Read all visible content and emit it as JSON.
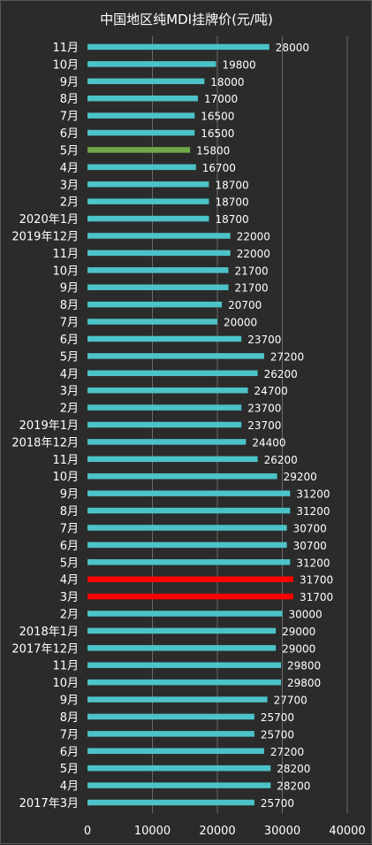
{
  "chart_data": {
    "type": "bar",
    "orientation": "horizontal",
    "title": "中国地区纯MDI挂牌价(元/吨)",
    "xlim": [
      0,
      40000
    ],
    "x_ticks": [
      "0",
      "10000",
      "20000",
      "30000",
      "40000"
    ],
    "grid": true,
    "colors": {
      "default": "#4cc3c8",
      "highlight_green": "#70a84a",
      "highlight_red": "#ff0000"
    },
    "categories": [
      "11月",
      "10月",
      "9月",
      "8月",
      "7月",
      "6月",
      "5月",
      "4月",
      "3月",
      "2月",
      "2020年1月",
      "2019年12月",
      "11月",
      "10月",
      "9月",
      "8月",
      "7月",
      "6月",
      "5月",
      "4月",
      "3月",
      "2月",
      "2019年1月",
      "2018年12月",
      "11月",
      "10月",
      "9月",
      "8月",
      "7月",
      "6月",
      "5月",
      "4月",
      "3月",
      "2月",
      "2018年1月",
      "2017年12月",
      "11月",
      "10月",
      "9月",
      "8月",
      "7月",
      "6月",
      "5月",
      "4月",
      "2017年3月"
    ],
    "values": [
      28000,
      19800,
      18000,
      17000,
      16500,
      16500,
      15800,
      16700,
      18700,
      18700,
      18700,
      22000,
      22000,
      21700,
      21700,
      20700,
      20000,
      23700,
      27200,
      26200,
      24700,
      23700,
      23700,
      24400,
      26200,
      29200,
      31200,
      31200,
      30700,
      30700,
      31200,
      31700,
      31700,
      30000,
      29000,
      29000,
      29800,
      29800,
      27700,
      25700,
      25700,
      27200,
      28200,
      28200,
      25700
    ],
    "value_labels": [
      "28000",
      "19800",
      "18000",
      "17000",
      "16500",
      "16500",
      "15800",
      "16700",
      "18700",
      "18700",
      "18700",
      "22000",
      "22000",
      "21700",
      "21700",
      "20700",
      "20000",
      "23700",
      "27200",
      "26200",
      "24700",
      "23700",
      "23700",
      "24400",
      "26200",
      "29200",
      "31200",
      "31200",
      "30700",
      "30700",
      "31200",
      "31700",
      "31700",
      "30000",
      "29000",
      "29000",
      "29800",
      "29800",
      "27700",
      "25700",
      "25700",
      "27200",
      "28200",
      "28200",
      "25700"
    ],
    "bar_colors": [
      "default",
      "default",
      "default",
      "default",
      "default",
      "default",
      "highlight_green",
      "default",
      "default",
      "default",
      "default",
      "default",
      "default",
      "default",
      "default",
      "default",
      "default",
      "default",
      "default",
      "default",
      "default",
      "default",
      "default",
      "default",
      "default",
      "default",
      "default",
      "default",
      "default",
      "default",
      "default",
      "highlight_red",
      "highlight_red",
      "default",
      "default",
      "default",
      "default",
      "default",
      "default",
      "default",
      "default",
      "default",
      "default",
      "default",
      "default"
    ]
  }
}
